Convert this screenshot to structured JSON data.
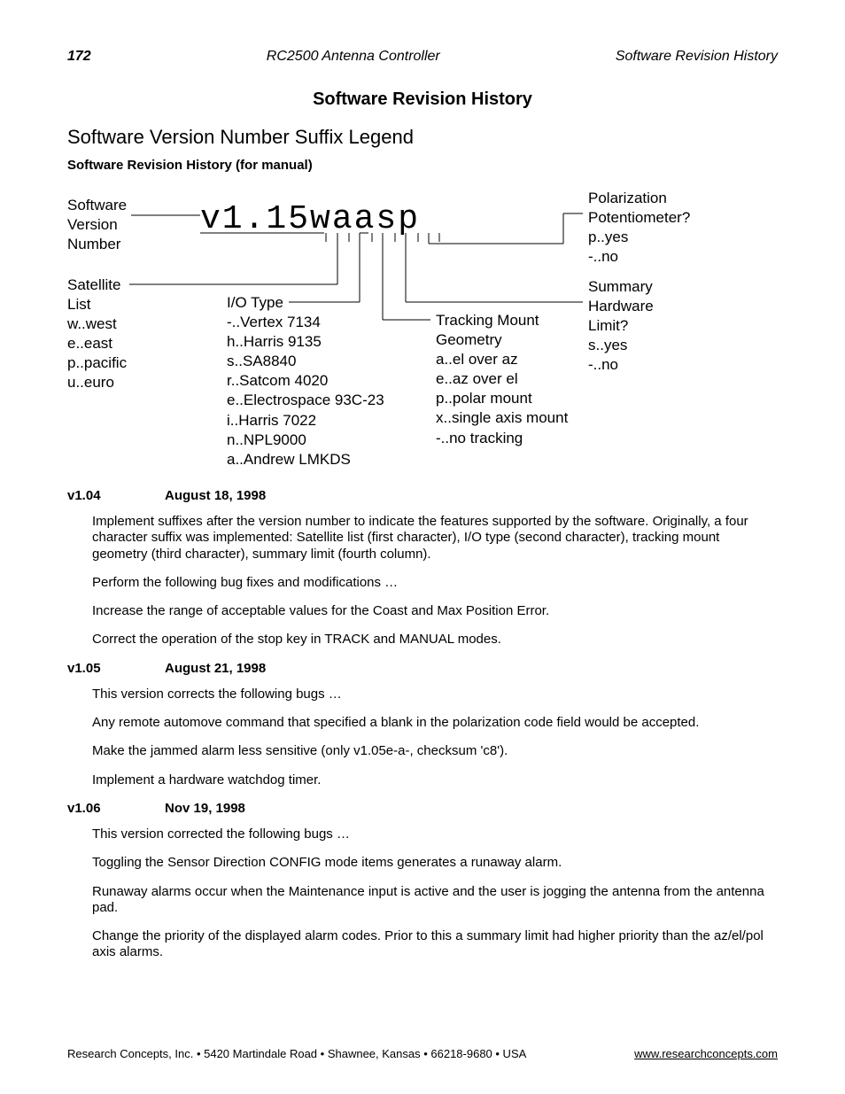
{
  "header": {
    "page_number": "172",
    "center": "RC2500  Antenna Controller",
    "right": "Software Revision History"
  },
  "title": "Software Revision History",
  "subtitle": "Software Version Number Suffix Legend",
  "subsubtitle": "Software Revision History (for manual)",
  "diagram": {
    "version_code": "v1.15waasp",
    "svn_label": "Software\nVersion\nNumber",
    "sat_label": "Satellite\nList\nw..west\ne..east\np..pacific\nu..euro",
    "io_label": "I/O Type\n-..Vertex 7134\nh..Harris 9135\ns..SA8840\nr..Satcom 4020\ne..Electrospace 93C-23\ni..Harris 7022\nn..NPL9000\na..Andrew LMKDS",
    "track_label": "Tracking Mount\nGeometry\na..el over az\ne..az over el\np..polar mount\nx..single axis mount\n-..no tracking",
    "pol_label": "Polarization\nPotentiometer?\np..yes\n-..no",
    "sum_label": "Summary\nHardware\nLimit?\ns..yes\n-..no"
  },
  "entries": [
    {
      "version": "v1.04",
      "date": "August 18, 1998",
      "paragraphs": [
        "Implement suffixes after the version number to indicate the features supported by the software. Originally, a four character suffix was implemented:  Satellite list (first character), I/O type (second character), tracking mount geometry (third character), summary limit (fourth column).",
        "Perform the following bug fixes and modifications …",
        "Increase the range of acceptable values for the Coast and Max Position Error.",
        "Correct the operation of the stop key in TRACK and MANUAL modes."
      ]
    },
    {
      "version": "v1.05",
      "date": "August 21, 1998",
      "paragraphs": [
        "This version corrects the following bugs …",
        "Any remote automove command that specified a blank in the polarization code field would be accepted.",
        "Make the jammed alarm less sensitive (only v1.05e-a-, checksum 'c8').",
        "Implement a hardware watchdog timer."
      ]
    },
    {
      "version": "v1.06",
      "date": "Nov 19, 1998",
      "paragraphs": [
        "This version corrected the following bugs …",
        "Toggling the Sensor Direction CONFIG mode items generates a runaway alarm.",
        "Runaway alarms occur when the Maintenance input is active and the user is jogging the antenna from the antenna pad.",
        "Change the priority of the displayed alarm codes.  Prior to this a summary limit had higher priority than the az/el/pol axis alarms."
      ]
    }
  ],
  "footer": {
    "left": "Research Concepts, Inc. • 5420 Martindale Road • Shawnee, Kansas • 66218-9680 • USA",
    "right": "www.researchconcepts.com"
  },
  "colors": {
    "text": "#000000",
    "background": "#ffffff",
    "line": "#000000"
  }
}
